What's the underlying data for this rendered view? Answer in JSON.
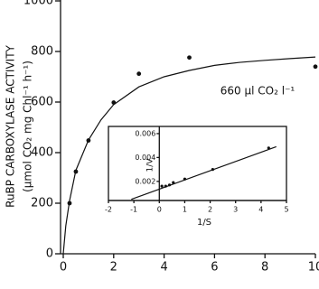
{
  "chart_data": [
    {
      "type": "scatter",
      "ylabel": "RuBP CARBOXYLASE ACTIVITY",
      "ylabel2": "(µmol CO₂ mg Chl⁻¹ h⁻¹)",
      "annotation": "660 µl CO₂ l⁻¹",
      "xlim": [
        0,
        10
      ],
      "ylim": [
        0,
        1000
      ],
      "xticks": [
        0,
        2,
        4,
        6,
        8,
        10
      ],
      "yticks": [
        0,
        200,
        400,
        600,
        800,
        1000
      ],
      "series": [
        {
          "type": "scatter",
          "color": "#111111",
          "x": [
            0.25,
            0.5,
            1,
            2,
            3,
            5,
            10
          ],
          "values": [
            200,
            325,
            448,
            598,
            712,
            776,
            740
          ]
        },
        {
          "type": "line",
          "color": "#111111",
          "x": [
            0,
            0.1,
            0.25,
            0.5,
            1,
            1.5,
            2,
            3,
            4,
            5,
            6,
            7,
            8,
            9,
            10
          ],
          "values": [
            0,
            110,
            210,
            330,
            450,
            530,
            590,
            660,
            700,
            725,
            745,
            757,
            765,
            772,
            778
          ]
        }
      ]
    },
    {
      "type": "scatter",
      "xlabel": "1/S",
      "ylabel": "1/V",
      "xlim": [
        -2,
        5
      ],
      "ylim": [
        0.0004,
        0.0066
      ],
      "xticks": [
        -2,
        -1,
        0,
        1,
        2,
        3,
        4,
        5
      ],
      "yticks": [
        0.002,
        0.004,
        0.006
      ],
      "series": [
        {
          "type": "scatter",
          "color": "#111111",
          "x": [
            0.1,
            0.25,
            0.4,
            0.55,
            1,
            2.1,
            4.3
          ],
          "values": [
            0.0016,
            0.0016,
            0.0017,
            0.0019,
            0.0022,
            0.003,
            0.0048
          ]
        },
        {
          "type": "line",
          "color": "#111111",
          "x": [
            -1.1,
            4.6
          ],
          "values": [
            0.0005,
            0.0049
          ]
        }
      ]
    }
  ]
}
